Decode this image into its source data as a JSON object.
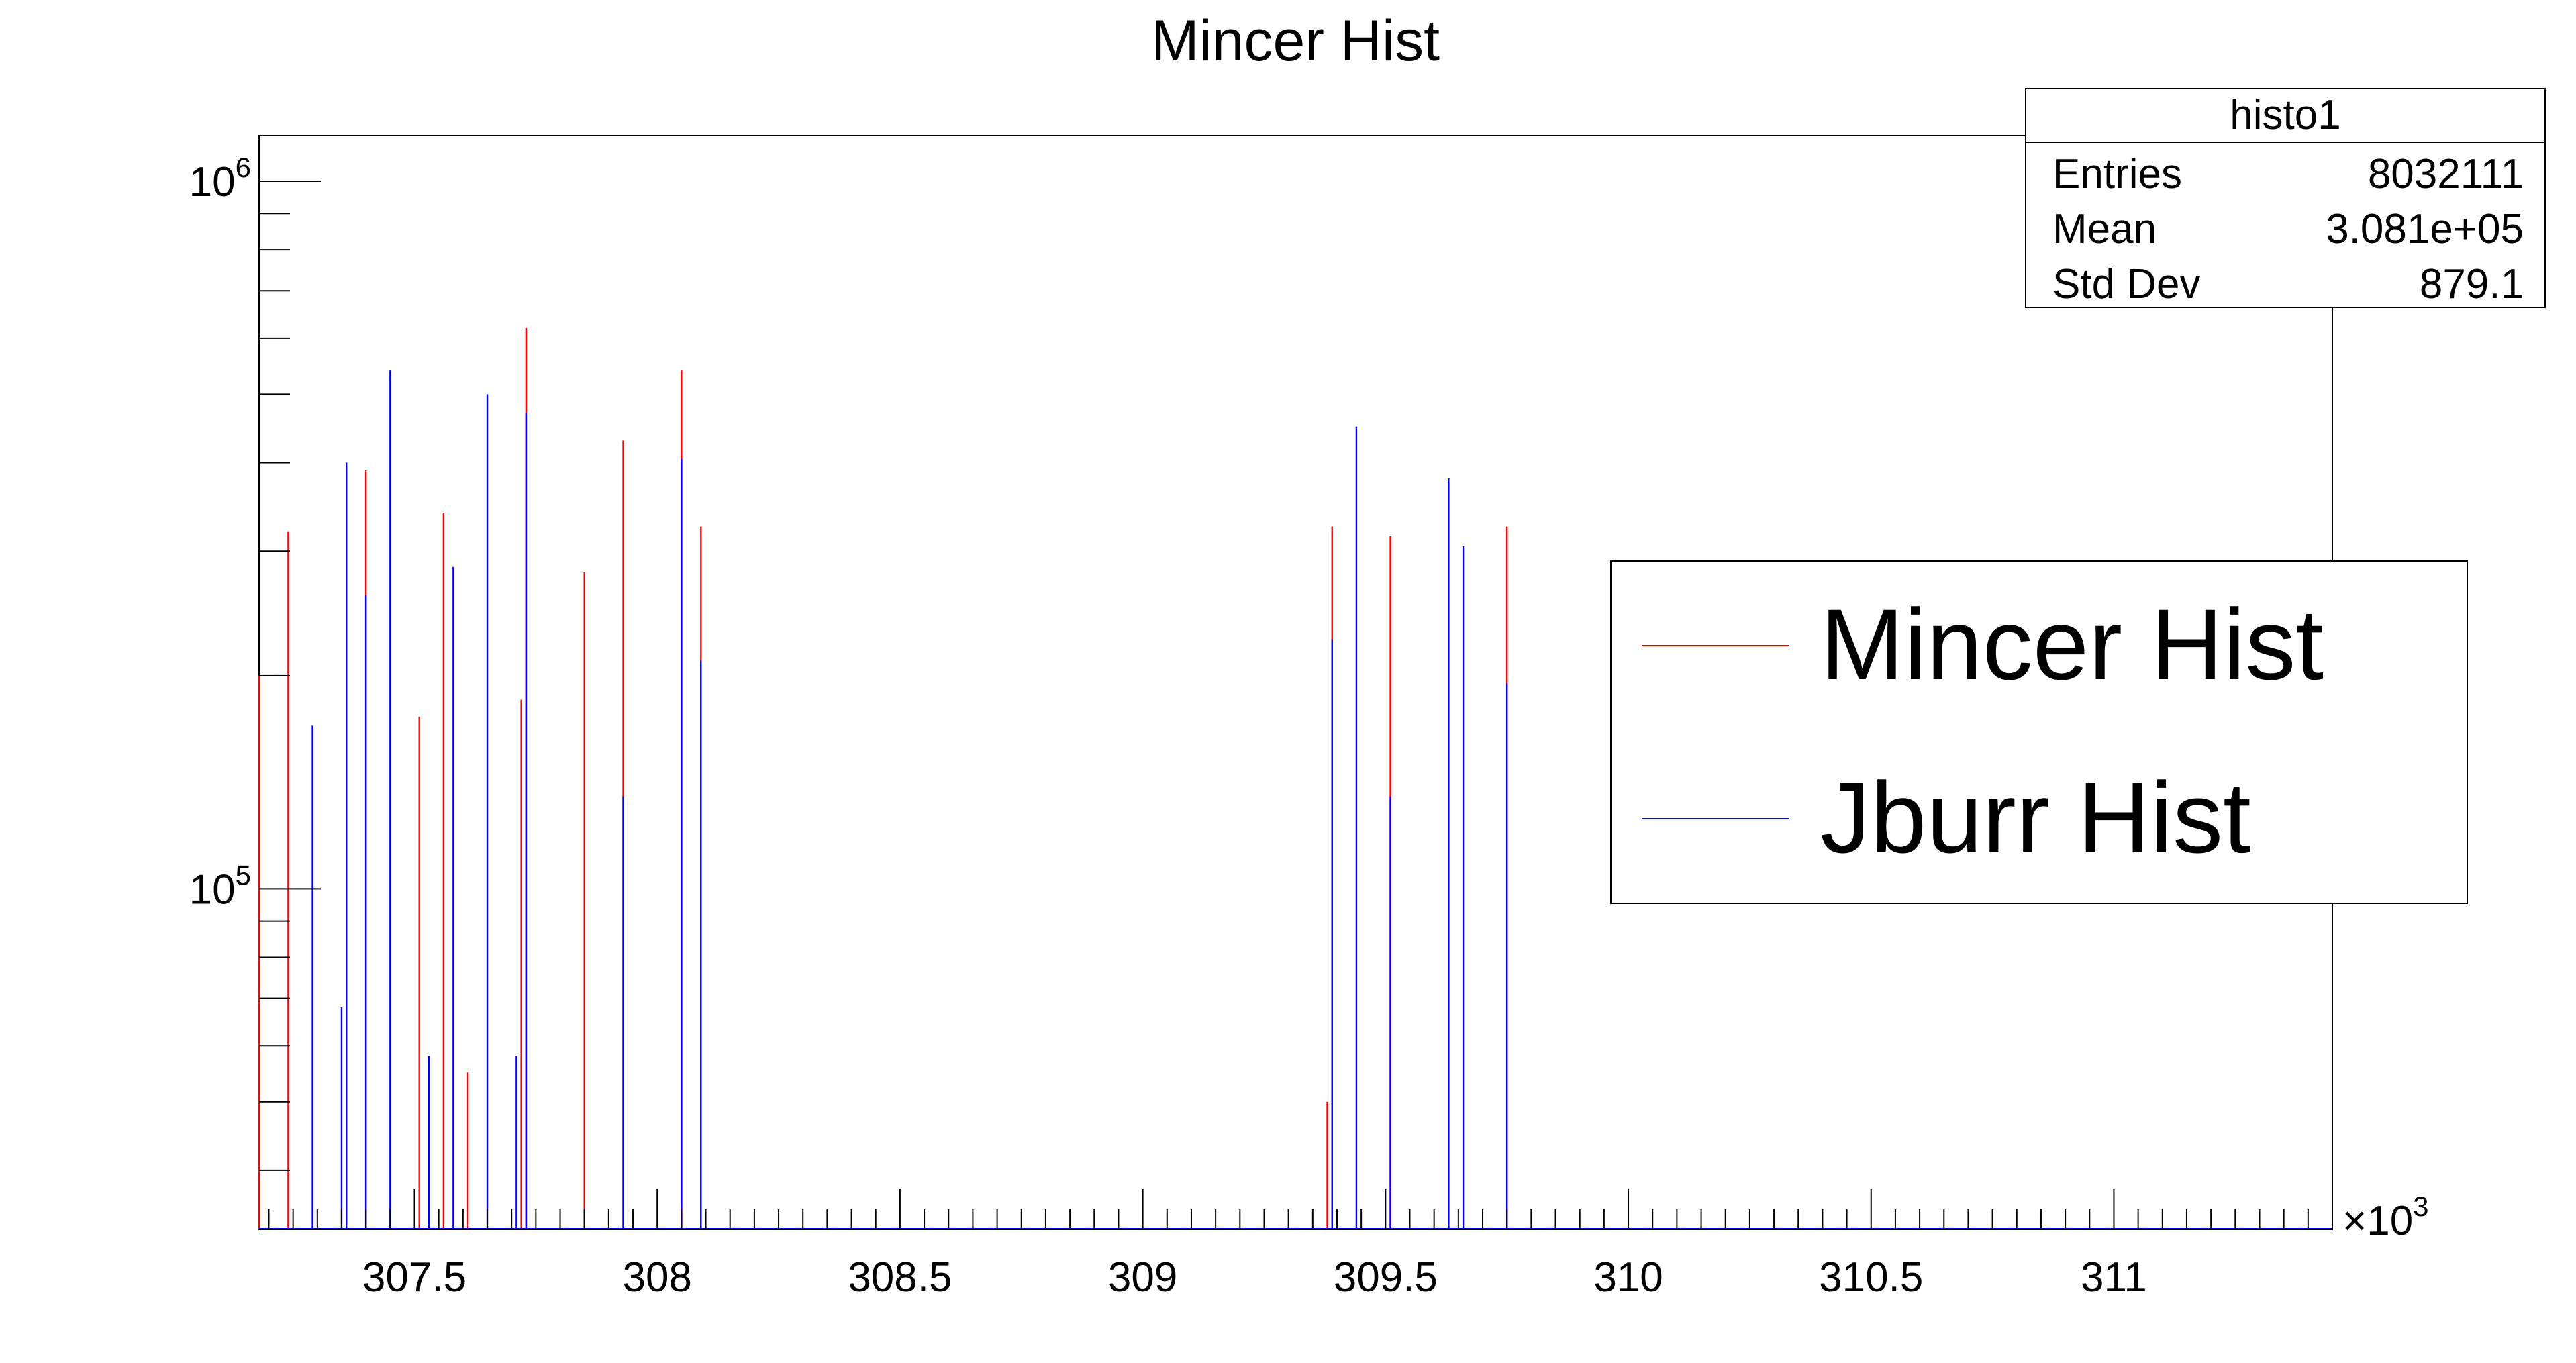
{
  "chart_data": {
    "type": "bar",
    "title": "Mincer Hist",
    "xlabel": "",
    "ylabel": "",
    "x_scale_label": "×10",
    "x_scale_exp": "3",
    "xlim": [
      307.18,
      311.45
    ],
    "ylim": [
      33000,
      1160000
    ],
    "y_scale": "log",
    "x_ticks": [
      "307.5",
      "308",
      "308.5",
      "309",
      "309.5",
      "310",
      "310.5",
      "311"
    ],
    "x_tick_values": [
      307.5,
      308.0,
      308.5,
      309.0,
      309.5,
      310.0,
      310.5,
      311.0
    ],
    "y_ticks": [
      {
        "base": "10",
        "exp": "5",
        "value": 100000
      },
      {
        "base": "10",
        "exp": "6",
        "value": 1000000
      }
    ],
    "grid": false,
    "stats_box": {
      "title": "histo1",
      "rows": [
        {
          "label": "Entries",
          "value": "8032111"
        },
        {
          "label": "Mean",
          "value": "3.081e+05"
        },
        {
          "label": "Std Dev",
          "value": "879.1"
        }
      ]
    },
    "legend": {
      "position": "right",
      "entries": [
        {
          "label": "Mincer Hist",
          "color": "#ff0000"
        },
        {
          "label": "Jburr Hist",
          "color": "#0000ff"
        }
      ]
    },
    "series": [
      {
        "name": "Mincer Hist",
        "color": "#ff0000",
        "x": [
          307.18,
          307.24,
          307.4,
          307.51,
          307.56,
          307.61,
          307.72,
          307.73,
          307.85,
          307.93,
          308.05,
          308.09,
          309.38,
          309.39,
          309.51,
          309.75
        ],
        "values": [
          200000,
          320000,
          390000,
          175000,
          340000,
          55000,
          185000,
          620000,
          280000,
          430000,
          540000,
          325000,
          50000,
          325000,
          315000,
          325000
        ]
      },
      {
        "name": "Jburr Hist",
        "color": "#0000ff",
        "x": [
          307.29,
          307.35,
          307.36,
          307.4,
          307.45,
          307.53,
          307.58,
          307.65,
          307.71,
          307.73,
          307.93,
          308.05,
          308.09,
          309.39,
          309.44,
          309.51,
          309.63,
          309.66,
          309.75
        ],
        "values": [
          170000,
          68000,
          400000,
          260000,
          540000,
          58000,
          285000,
          500000,
          58000,
          470000,
          135000,
          405000,
          210000,
          225000,
          450000,
          135000,
          380000,
          305000,
          195000
        ]
      }
    ]
  }
}
